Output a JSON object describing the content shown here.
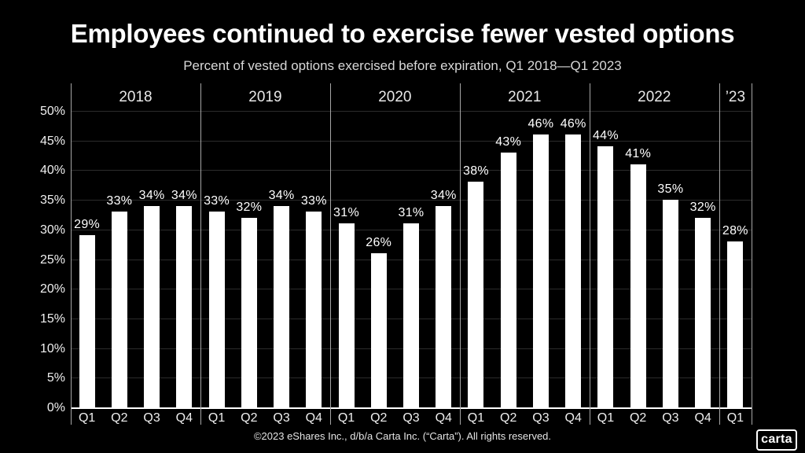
{
  "page": {
    "title": "Employees continued to exercise fewer vested options",
    "subtitle": "Percent of vested options exercised before expiration, Q1 2018—Q1 2023",
    "footer": "©2023 eShares Inc., d/b/a Carta Inc. (“Carta”). All rights reserved.",
    "logo_text": "carta"
  },
  "colors": {
    "background": "#000000",
    "bar": "#ffffff",
    "gridline": "#2c2c2c",
    "baseline": "#ffffff",
    "year_separator": "#a6a6a6",
    "title_text": "#ffffff",
    "subtitle_text": "#d8d8d8",
    "tick_text": "#f0f0f0"
  },
  "chart_data": {
    "type": "bar",
    "title": "Employees continued to exercise fewer vested options",
    "subtitle": "Percent of vested options exercised before expiration, Q1 2018—Q1 2023",
    "xlabel": "",
    "ylabel": "",
    "ylim": [
      0,
      50
    ],
    "ytick_step": 5,
    "yticks": [
      0,
      5,
      10,
      15,
      20,
      25,
      30,
      35,
      40,
      45,
      50
    ],
    "ytick_suffix": "%",
    "grid": true,
    "legend": false,
    "bar_label_suffix": "%",
    "groups": [
      {
        "year": "2018",
        "quarters": [
          "Q1",
          "Q2",
          "Q3",
          "Q4"
        ],
        "values": [
          29,
          33,
          34,
          34
        ]
      },
      {
        "year": "2019",
        "quarters": [
          "Q1",
          "Q2",
          "Q3",
          "Q4"
        ],
        "values": [
          33,
          32,
          34,
          33
        ]
      },
      {
        "year": "2020",
        "quarters": [
          "Q1",
          "Q2",
          "Q3",
          "Q4"
        ],
        "values": [
          31,
          26,
          31,
          34
        ]
      },
      {
        "year": "2021",
        "quarters": [
          "Q1",
          "Q2",
          "Q3",
          "Q4"
        ],
        "values": [
          38,
          43,
          46,
          46
        ]
      },
      {
        "year": "2022",
        "quarters": [
          "Q1",
          "Q2",
          "Q3",
          "Q4"
        ],
        "values": [
          44,
          41,
          35,
          32
        ]
      },
      {
        "year": "’23",
        "quarters": [
          "Q1"
        ],
        "values": [
          28
        ]
      }
    ]
  }
}
